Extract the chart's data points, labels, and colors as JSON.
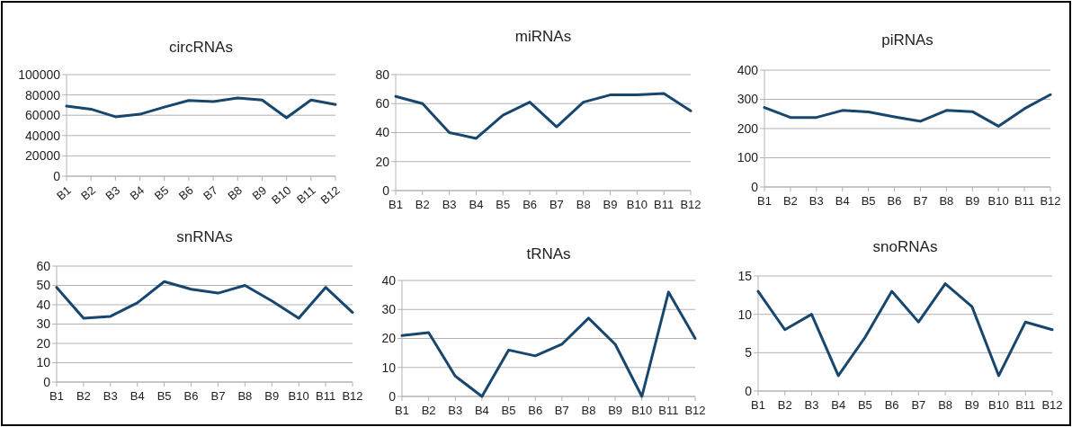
{
  "chart_data": [
    {
      "type": "line",
      "title": "circRNAs",
      "categories": [
        "B1",
        "B2",
        "B3",
        "B4",
        "B5",
        "B6",
        "B7",
        "B8",
        "B9",
        "B10",
        "B11",
        "B12"
      ],
      "series": [
        {
          "color": "#17466e",
          "values": [
            69000,
            66000,
            58500,
            61000,
            68000,
            74500,
            73500,
            77000,
            75000,
            57500,
            75000,
            70500
          ]
        }
      ],
      "ylim": [
        0,
        100000
      ],
      "yticks": [
        0,
        20000,
        40000,
        60000,
        80000,
        100000
      ],
      "grid": "y",
      "marker": "none"
    },
    {
      "type": "line",
      "title": "miRNAs",
      "categories": [
        "B1",
        "B2",
        "B3",
        "B4",
        "B5",
        "B6",
        "B7",
        "B8",
        "B9",
        "B10",
        "B11",
        "B12"
      ],
      "series": [
        {
          "color": "#17466e",
          "values": [
            65,
            60,
            40,
            36,
            52,
            61,
            44,
            61,
            66,
            66,
            67,
            55
          ]
        }
      ],
      "ylim": [
        0,
        80
      ],
      "yticks": [
        0,
        20,
        40,
        60,
        80
      ],
      "grid": "y",
      "marker": "none"
    },
    {
      "type": "line",
      "title": "piRNAs",
      "categories": [
        "B1",
        "B2",
        "B3",
        "B4",
        "B5",
        "B6",
        "B7",
        "B8",
        "B9",
        "B10",
        "B11",
        "B12"
      ],
      "series": [
        {
          "color": "#17466e",
          "values": [
            272,
            238,
            238,
            262,
            257,
            240,
            225,
            262,
            258,
            208,
            268,
            316
          ]
        }
      ],
      "ylim": [
        0,
        400
      ],
      "yticks": [
        0,
        100,
        200,
        300,
        400
      ],
      "grid": "y",
      "marker": "none"
    },
    {
      "type": "line",
      "title": "snRNAs",
      "categories": [
        "B1",
        "B2",
        "B3",
        "B4",
        "B5",
        "B6",
        "B7",
        "B8",
        "B9",
        "B10",
        "B11",
        "B12"
      ],
      "series": [
        {
          "color": "#17466e",
          "values": [
            49,
            33,
            34,
            41,
            52,
            48,
            46,
            50,
            42,
            33,
            49,
            36
          ]
        }
      ],
      "ylim": [
        0,
        60
      ],
      "yticks": [
        0,
        10,
        20,
        30,
        40,
        50,
        60
      ],
      "grid": "y",
      "marker": "none"
    },
    {
      "type": "line",
      "title": "tRNAs",
      "categories": [
        "B1",
        "B2",
        "B3",
        "B4",
        "B5",
        "B6",
        "B7",
        "B8",
        "B9",
        "B10",
        "B11",
        "B12"
      ],
      "series": [
        {
          "color": "#17466e",
          "values": [
            21,
            22,
            7,
            0,
            16,
            14,
            18,
            27,
            18,
            0,
            36,
            20
          ]
        }
      ],
      "ylim": [
        0,
        40
      ],
      "yticks": [
        0,
        10,
        20,
        30,
        40
      ],
      "grid": "y",
      "marker": "none"
    },
    {
      "type": "line",
      "title": "snoRNAs",
      "categories": [
        "B1",
        "B2",
        "B3",
        "B4",
        "B5",
        "B6",
        "B7",
        "B8",
        "B9",
        "B10",
        "B11",
        "B12"
      ],
      "series": [
        {
          "color": "#17466e",
          "values": [
            13,
            8,
            10,
            2,
            7,
            13,
            9,
            14,
            11,
            2,
            9,
            8
          ]
        }
      ],
      "ylim": [
        0,
        15
      ],
      "yticks": [
        0,
        5,
        10,
        15
      ],
      "grid": "y",
      "marker": "none"
    }
  ]
}
